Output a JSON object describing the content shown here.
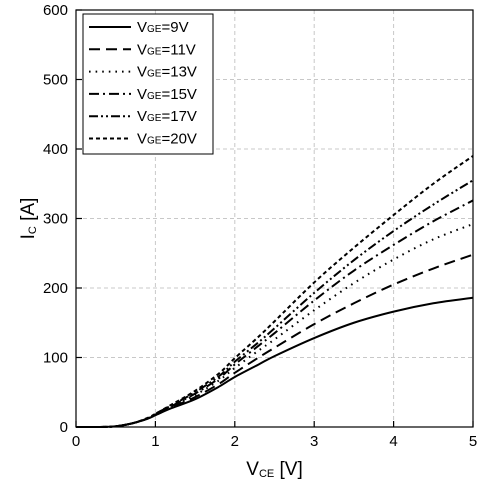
{
  "chart_data": {
    "type": "line",
    "xlabel": {
      "main": "V",
      "sub": "CE",
      "unit": " [V]"
    },
    "ylabel": {
      "main": "I",
      "sub": "C",
      "unit": " [A]"
    },
    "xlim": [
      0,
      5
    ],
    "ylim": [
      0,
      600
    ],
    "xticks": [
      0,
      1,
      2,
      3,
      4,
      5
    ],
    "yticks": [
      0,
      100,
      200,
      300,
      400,
      500,
      600
    ],
    "grid": true,
    "legend_position": "top-left",
    "series": [
      {
        "name_main": "V",
        "name_sub": "GE",
        "name_value": "=9V",
        "dash": "solid",
        "points": [
          [
            0,
            0
          ],
          [
            0.3,
            0
          ],
          [
            0.5,
            1
          ],
          [
            0.7,
            5
          ],
          [
            0.9,
            12
          ],
          [
            1.0,
            17
          ],
          [
            1.2,
            27
          ],
          [
            1.5,
            40
          ],
          [
            1.8,
            58
          ],
          [
            2.0,
            72
          ],
          [
            2.3,
            90
          ],
          [
            2.5,
            102
          ],
          [
            3.0,
            128
          ],
          [
            3.5,
            150
          ],
          [
            4.0,
            166
          ],
          [
            4.5,
            178
          ],
          [
            5.0,
            186
          ]
        ]
      },
      {
        "name_main": "V",
        "name_sub": "GE",
        "name_value": "=11V",
        "dash": "long-dash",
        "points": [
          [
            0,
            0
          ],
          [
            0.3,
            0
          ],
          [
            0.5,
            1
          ],
          [
            0.7,
            5
          ],
          [
            0.9,
            12
          ],
          [
            1.0,
            17
          ],
          [
            1.2,
            28
          ],
          [
            1.5,
            43
          ],
          [
            1.8,
            62
          ],
          [
            2.0,
            78
          ],
          [
            2.3,
            100
          ],
          [
            2.5,
            114
          ],
          [
            3.0,
            148
          ],
          [
            3.5,
            178
          ],
          [
            4.0,
            205
          ],
          [
            4.5,
            228
          ],
          [
            5.0,
            248
          ]
        ]
      },
      {
        "name_main": "V",
        "name_sub": "GE",
        "name_value": "=13V",
        "dash": "dot",
        "points": [
          [
            0,
            0
          ],
          [
            0.3,
            0
          ],
          [
            0.5,
            1
          ],
          [
            0.7,
            5
          ],
          [
            0.9,
            12
          ],
          [
            1.0,
            18
          ],
          [
            1.2,
            29
          ],
          [
            1.5,
            46
          ],
          [
            1.8,
            67
          ],
          [
            2.0,
            85
          ],
          [
            2.3,
            110
          ],
          [
            2.5,
            126
          ],
          [
            3.0,
            168
          ],
          [
            3.5,
            207
          ],
          [
            4.0,
            241
          ],
          [
            4.5,
            270
          ],
          [
            5.0,
            292
          ]
        ]
      },
      {
        "name_main": "V",
        "name_sub": "GE",
        "name_value": "=15V",
        "dash": "dash-dot",
        "points": [
          [
            0,
            0
          ],
          [
            0.3,
            0
          ],
          [
            0.5,
            1
          ],
          [
            0.7,
            5
          ],
          [
            0.9,
            12
          ],
          [
            1.0,
            18
          ],
          [
            1.2,
            30
          ],
          [
            1.5,
            48
          ],
          [
            1.8,
            70
          ],
          [
            2.0,
            90
          ],
          [
            2.3,
            117
          ],
          [
            2.5,
            135
          ],
          [
            3.0,
            182
          ],
          [
            3.5,
            225
          ],
          [
            4.0,
            262
          ],
          [
            4.5,
            296
          ],
          [
            5.0,
            326
          ]
        ]
      },
      {
        "name_main": "V",
        "name_sub": "GE",
        "name_value": "=17V",
        "dash": "dash-dot-dot",
        "points": [
          [
            0,
            0
          ],
          [
            0.3,
            0
          ],
          [
            0.5,
            1
          ],
          [
            0.7,
            5
          ],
          [
            0.9,
            12
          ],
          [
            1.0,
            19
          ],
          [
            1.2,
            31
          ],
          [
            1.5,
            50
          ],
          [
            1.8,
            73
          ],
          [
            2.0,
            94
          ],
          [
            2.3,
            122
          ],
          [
            2.5,
            142
          ],
          [
            3.0,
            193
          ],
          [
            3.5,
            240
          ],
          [
            4.0,
            282
          ],
          [
            4.5,
            320
          ],
          [
            5.0,
            355
          ]
        ]
      },
      {
        "name_main": "V",
        "name_sub": "GE",
        "name_value": "=20V",
        "dash": "short-dash",
        "points": [
          [
            0,
            0
          ],
          [
            0.3,
            0
          ],
          [
            0.5,
            1
          ],
          [
            0.7,
            5
          ],
          [
            0.9,
            13
          ],
          [
            1.0,
            19
          ],
          [
            1.2,
            32
          ],
          [
            1.5,
            52
          ],
          [
            1.8,
            77
          ],
          [
            2.0,
            99
          ],
          [
            2.3,
            130
          ],
          [
            2.5,
            152
          ],
          [
            3.0,
            208
          ],
          [
            3.5,
            258
          ],
          [
            4.0,
            305
          ],
          [
            4.5,
            350
          ],
          [
            5.0,
            390
          ]
        ]
      }
    ]
  }
}
